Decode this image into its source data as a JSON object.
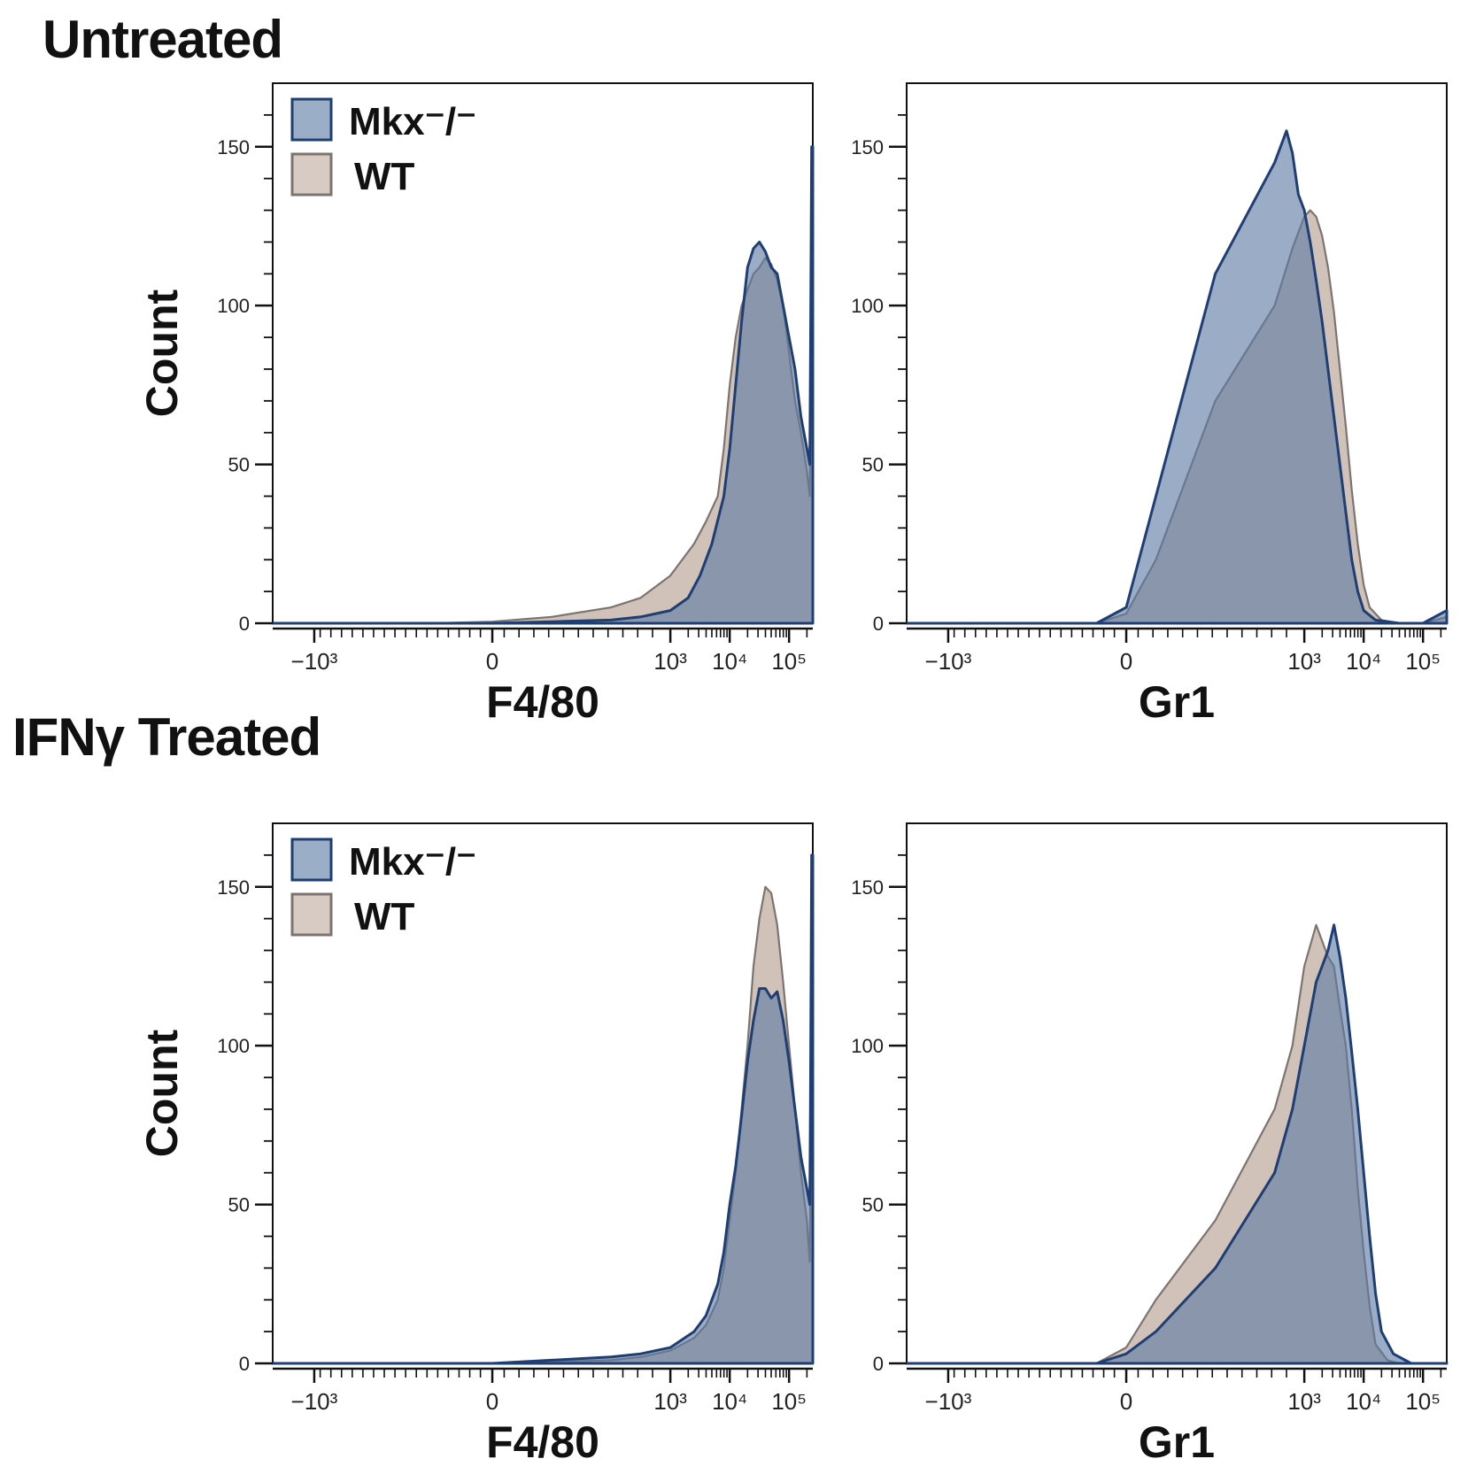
{
  "sections": [
    {
      "title": "Untreated"
    },
    {
      "title": "IFNγ Treated"
    }
  ],
  "colors": {
    "mkx_fill": "#5d7aa3",
    "mkx_line": "#1f3e73",
    "wt_fill": "#c9b7ad",
    "wt_line": "#7c7470",
    "overlap": "#7f8b9b",
    "axis": "#111111"
  },
  "chart_data": [
    {
      "type": "area",
      "panel": "Untreated / F4/80",
      "xlabel": "F4/80",
      "ylabel": "Count",
      "ylim": [
        0,
        170
      ],
      "y_ticks": [
        0,
        50,
        100,
        150
      ],
      "x_ticks": [
        {
          "label": "−10³",
          "value": -3
        },
        {
          "label": "0",
          "value": 0
        },
        {
          "label": "10³",
          "value": 3
        },
        {
          "label": "10⁴",
          "value": 4
        },
        {
          "label": "10⁵",
          "value": 5
        }
      ],
      "xlim": [
        -3.7,
        5.4
      ],
      "legend": [
        {
          "name": "Mkx⁻/⁻",
          "key": "mkx"
        },
        {
          "name": "WT",
          "key": "wt"
        }
      ],
      "series": [
        {
          "name": "WT",
          "key": "wt",
          "x": [
            -3.7,
            -1.0,
            0,
            1.0,
            2.0,
            2.5,
            3.0,
            3.4,
            3.6,
            3.8,
            3.9,
            4.0,
            4.1,
            4.2,
            4.3,
            4.4,
            4.5,
            4.6,
            4.7,
            4.8,
            4.9,
            5.0,
            5.1,
            5.2,
            5.3,
            5.35,
            5.36,
            5.38,
            5.4
          ],
          "y": [
            0,
            0,
            0.5,
            2,
            5,
            8,
            15,
            25,
            32,
            40,
            55,
            75,
            90,
            100,
            105,
            110,
            112,
            115,
            113,
            108,
            100,
            85,
            70,
            60,
            48,
            40,
            70,
            150,
            150
          ]
        },
        {
          "name": "Mkx⁻/⁻",
          "key": "mkx",
          "x": [
            -3.7,
            -1.0,
            0,
            1.0,
            2.0,
            2.5,
            3.0,
            3.3,
            3.5,
            3.7,
            3.9,
            4.0,
            4.1,
            4.2,
            4.3,
            4.4,
            4.5,
            4.6,
            4.7,
            4.8,
            4.9,
            5.0,
            5.1,
            5.2,
            5.3,
            5.35,
            5.36,
            5.38,
            5.4
          ],
          "y": [
            0,
            0,
            0,
            0.5,
            1,
            2,
            4,
            8,
            15,
            25,
            40,
            55,
            75,
            95,
            112,
            118,
            120,
            117,
            112,
            110,
            100,
            90,
            80,
            65,
            55,
            50,
            80,
            150,
            150
          ]
        }
      ]
    },
    {
      "type": "area",
      "panel": "Untreated / Gr1",
      "xlabel": "Gr1",
      "ylabel": "",
      "ylim": [
        0,
        170
      ],
      "y_ticks": [
        0,
        50,
        100,
        150
      ],
      "x_ticks": [
        {
          "label": "−10³",
          "value": -3
        },
        {
          "label": "0",
          "value": 0
        },
        {
          "label": "10³",
          "value": 3
        },
        {
          "label": "10⁴",
          "value": 4
        },
        {
          "label": "10⁵",
          "value": 5
        }
      ],
      "xlim": [
        -3.7,
        5.4
      ],
      "legend": [],
      "series": [
        {
          "name": "WT",
          "key": "wt",
          "x": [
            -3.7,
            -0.5,
            0,
            0.5,
            1.5,
            2.5,
            2.8,
            3.0,
            3.1,
            3.2,
            3.3,
            3.4,
            3.5,
            3.6,
            3.7,
            3.8,
            3.9,
            4.0,
            4.1,
            4.3,
            4.6,
            5.0,
            5.4
          ],
          "y": [
            0,
            0,
            3,
            20,
            70,
            100,
            118,
            128,
            130,
            128,
            122,
            112,
            98,
            80,
            62,
            42,
            25,
            12,
            5,
            1,
            0,
            0,
            2
          ]
        },
        {
          "name": "Mkx⁻/⁻",
          "key": "mkx",
          "x": [
            -3.7,
            -0.5,
            0,
            0.5,
            1.5,
            2.5,
            2.7,
            2.8,
            2.9,
            3.0,
            3.1,
            3.2,
            3.3,
            3.4,
            3.5,
            3.6,
            3.7,
            3.8,
            3.9,
            4.0,
            4.2,
            4.6,
            5.0,
            5.4
          ],
          "y": [
            0,
            0,
            5,
            40,
            110,
            145,
            155,
            148,
            135,
            130,
            120,
            108,
            95,
            80,
            65,
            50,
            35,
            20,
            10,
            4,
            1,
            0,
            0,
            4
          ]
        }
      ]
    },
    {
      "type": "area",
      "panel": "IFNγ Treated / F4/80",
      "xlabel": "F4/80",
      "ylabel": "Count",
      "ylim": [
        0,
        170
      ],
      "y_ticks": [
        0,
        50,
        100,
        150
      ],
      "x_ticks": [
        {
          "label": "−10³",
          "value": -3
        },
        {
          "label": "0",
          "value": 0
        },
        {
          "label": "10³",
          "value": 3
        },
        {
          "label": "10⁴",
          "value": 4
        },
        {
          "label": "10⁵",
          "value": 5
        }
      ],
      "xlim": [
        -3.7,
        5.4
      ],
      "legend": [
        {
          "name": "Mkx⁻/⁻",
          "key": "mkx"
        },
        {
          "name": "WT",
          "key": "wt"
        }
      ],
      "series": [
        {
          "name": "WT",
          "key": "wt",
          "x": [
            -3.7,
            -1.0,
            0,
            1.0,
            2.0,
            2.5,
            3.0,
            3.4,
            3.6,
            3.8,
            3.9,
            4.0,
            4.1,
            4.2,
            4.3,
            4.4,
            4.5,
            4.6,
            4.7,
            4.8,
            4.9,
            5.0,
            5.1,
            5.2,
            5.3,
            5.35,
            5.36,
            5.38,
            5.4
          ],
          "y": [
            0,
            0,
            0,
            0.5,
            1,
            2,
            4,
            8,
            12,
            20,
            30,
            45,
            60,
            80,
            100,
            125,
            140,
            150,
            148,
            138,
            120,
            100,
            80,
            60,
            45,
            32,
            60,
            160,
            160
          ]
        },
        {
          "name": "Mkx⁻/⁻",
          "key": "mkx",
          "x": [
            -3.7,
            -1.0,
            0,
            1.0,
            2.0,
            2.5,
            3.0,
            3.4,
            3.6,
            3.8,
            3.9,
            4.0,
            4.1,
            4.2,
            4.3,
            4.4,
            4.5,
            4.6,
            4.7,
            4.8,
            4.9,
            5.0,
            5.1,
            5.2,
            5.3,
            5.35,
            5.36,
            5.38,
            5.4
          ],
          "y": [
            0,
            0,
            0,
            1,
            2,
            3,
            5,
            10,
            15,
            25,
            35,
            50,
            62,
            78,
            95,
            108,
            118,
            118,
            115,
            117,
            108,
            95,
            80,
            65,
            55,
            50,
            80,
            160,
            160
          ]
        }
      ]
    },
    {
      "type": "area",
      "panel": "IFNγ Treated / Gr1",
      "xlabel": "Gr1",
      "ylabel": "",
      "ylim": [
        0,
        170
      ],
      "y_ticks": [
        0,
        50,
        100,
        150
      ],
      "x_ticks": [
        {
          "label": "−10³",
          "value": -3
        },
        {
          "label": "0",
          "value": 0
        },
        {
          "label": "10³",
          "value": 3
        },
        {
          "label": "10⁴",
          "value": 4
        },
        {
          "label": "10⁵",
          "value": 5
        }
      ],
      "xlim": [
        -3.7,
        5.4
      ],
      "legend": [],
      "series": [
        {
          "name": "WT",
          "key": "wt",
          "x": [
            -3.7,
            -0.5,
            0,
            0.5,
            1.5,
            2.5,
            2.8,
            3.0,
            3.2,
            3.4,
            3.5,
            3.6,
            3.7,
            3.8,
            3.9,
            4.0,
            4.1,
            4.2,
            4.4,
            4.6,
            5.0,
            5.4
          ],
          "y": [
            0,
            0,
            5,
            20,
            45,
            80,
            100,
            125,
            138,
            128,
            125,
            112,
            100,
            80,
            55,
            35,
            18,
            6,
            1,
            0,
            0,
            0
          ]
        },
        {
          "name": "Mkx⁻/⁻",
          "key": "mkx",
          "x": [
            -3.7,
            -0.5,
            0,
            0.5,
            1.5,
            2.5,
            2.8,
            3.0,
            3.2,
            3.4,
            3.5,
            3.6,
            3.7,
            3.8,
            3.9,
            4.0,
            4.1,
            4.2,
            4.3,
            4.5,
            4.8,
            5.0,
            5.4
          ],
          "y": [
            0,
            0,
            3,
            10,
            30,
            60,
            80,
            100,
            120,
            130,
            138,
            128,
            115,
            98,
            80,
            60,
            40,
            22,
            10,
            3,
            0,
            0,
            0
          ]
        }
      ]
    }
  ]
}
